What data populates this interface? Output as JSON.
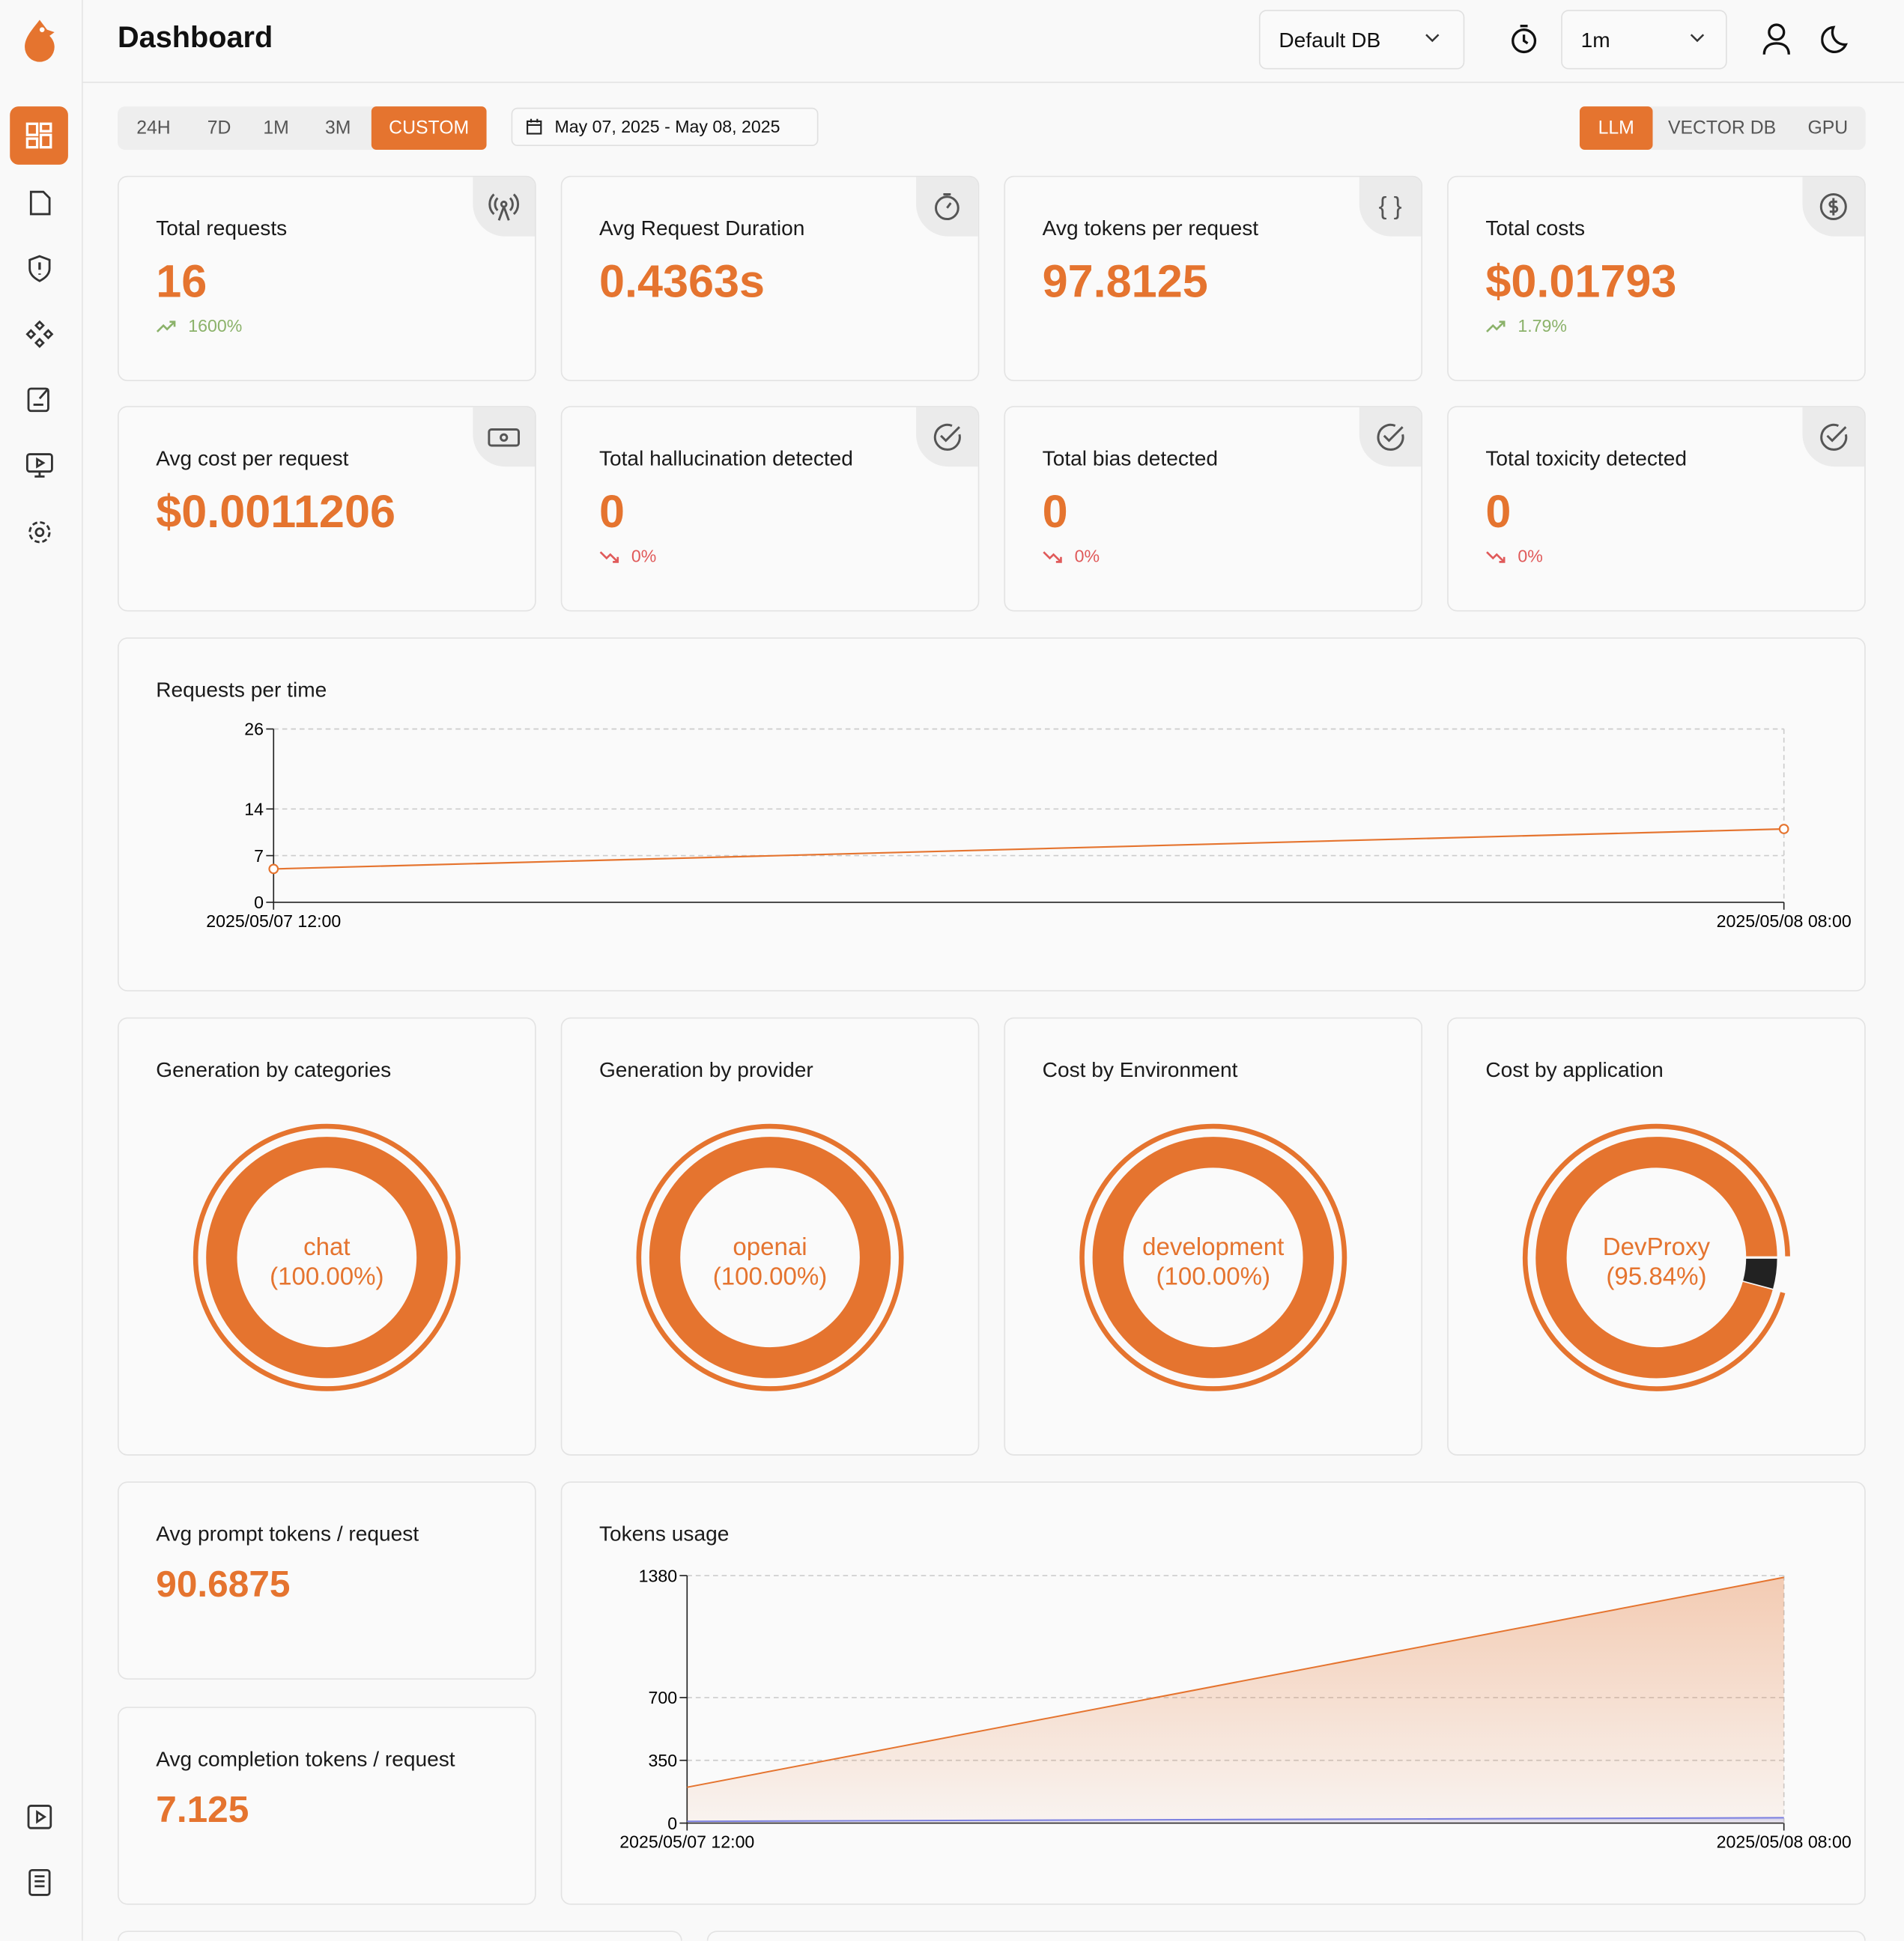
{
  "header": {
    "title": "Dashboard",
    "database": "Default DB",
    "refresh_interval": "1m"
  },
  "filters": {
    "ranges": [
      "24H",
      "7D",
      "1M",
      "3M",
      "CUSTOM"
    ],
    "selected_range": 4,
    "date_range": "May 07, 2025 - May 08, 2025",
    "modes": [
      "LLM",
      "VECTOR DB",
      "GPU"
    ],
    "selected_mode": 0
  },
  "stats": [
    {
      "label": "Total requests",
      "value": "16",
      "change": "1600%",
      "trend": "up"
    },
    {
      "label": "Avg Request Duration",
      "value": "0.4363s"
    },
    {
      "label": "Avg tokens per request",
      "value": "97.8125"
    },
    {
      "label": "Total costs",
      "value": "$0.01793",
      "change": "1.79%",
      "trend": "up"
    },
    {
      "label": "Avg cost per request",
      "value": "$0.0011206"
    },
    {
      "label": "Total hallucination detected",
      "value": "0",
      "change": "0%",
      "trend": "down"
    },
    {
      "label": "Total bias detected",
      "value": "0",
      "change": "0%",
      "trend": "down"
    },
    {
      "label": "Total toxicity detected",
      "value": "0",
      "change": "0%",
      "trend": "down"
    }
  ],
  "token_stats": [
    {
      "label": "Avg prompt tokens / request",
      "value": "90.6875"
    },
    {
      "label": "Avg completion tokens / request",
      "value": "7.125"
    }
  ],
  "chart_data": [
    {
      "type": "line",
      "title": "Requests per time",
      "x": [
        "2025/05/07 12:00",
        "2025/05/08 08:00"
      ],
      "values": [
        5,
        11
      ],
      "color": "#e5742f",
      "ylim": [
        0,
        26
      ],
      "yticks": [
        0,
        7,
        14,
        26
      ],
      "grid": true
    },
    {
      "type": "donut",
      "title": "Generation by categories",
      "categories": [
        "chat"
      ],
      "values": [
        100
      ],
      "value_labels": [
        "(100.00%)"
      ],
      "colors": [
        "#e5742f"
      ]
    },
    {
      "type": "donut",
      "title": "Generation by provider",
      "categories": [
        "openai"
      ],
      "values": [
        100
      ],
      "value_labels": [
        "(100.00%)"
      ],
      "colors": [
        "#e5742f"
      ]
    },
    {
      "type": "donut",
      "title": "Cost by Environment",
      "categories": [
        "development"
      ],
      "values": [
        100
      ],
      "value_labels": [
        "(100.00%)"
      ],
      "colors": [
        "#e5742f"
      ]
    },
    {
      "type": "donut",
      "title": "Cost by application",
      "categories": [
        "DevProxy",
        null
      ],
      "values": [
        95.84,
        4.16
      ],
      "value_labels": [
        "(95.84%)",
        null
      ],
      "colors": [
        "#e5742f",
        "#222222"
      ]
    },
    {
      "type": "area",
      "title": "Tokens usage",
      "x": [
        "2025/05/07 12:00",
        "2025/05/08 08:00"
      ],
      "series": [
        {
          "color": "#e5742f",
          "values": [
            200,
            1370
          ]
        },
        {
          "color": "#7b7fe0",
          "values": [
            10,
            30
          ]
        }
      ],
      "ylim": [
        0,
        1380
      ],
      "yticks": [
        0,
        350,
        700,
        1380
      ],
      "grid": true
    }
  ]
}
